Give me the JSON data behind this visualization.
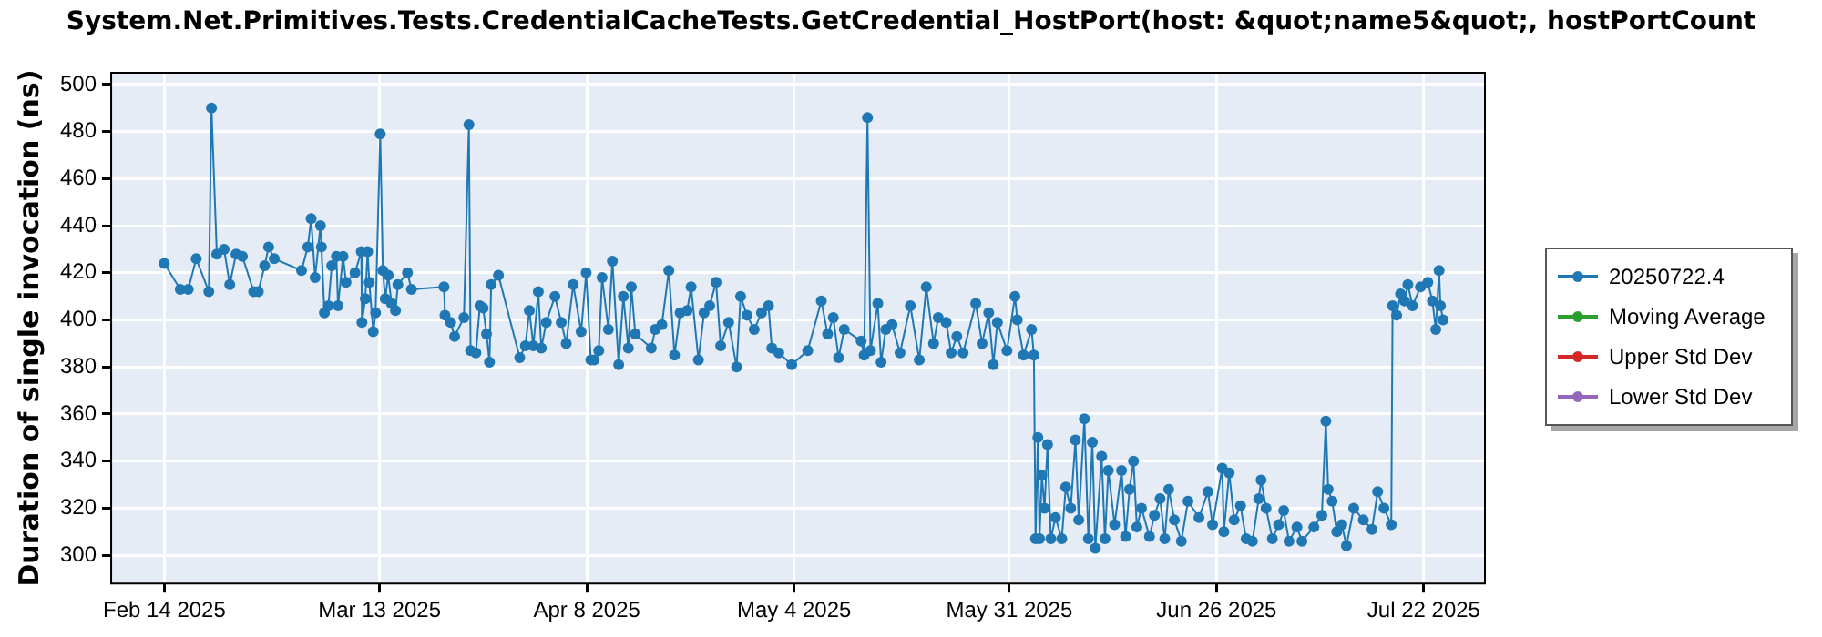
{
  "chart_data": {
    "type": "line",
    "title": "System.Net.Primitives.Tests.CredentialCacheTests.GetCredential_HostPort(host: &quot;name5&quot;, hostPortCount",
    "ylabel": "Duration of single invocation (ns)",
    "xlim": [
      "2025-02-07T08:00",
      "2025-07-29T16:00"
    ],
    "xticks": [
      {
        "value": "2025-02-14",
        "label": "Feb 14 2025"
      },
      {
        "value": "2025-03-13",
        "label": "Mar 13 2025"
      },
      {
        "value": "2025-04-08",
        "label": "Apr 8 2025"
      },
      {
        "value": "2025-05-04",
        "label": "May 4 2025"
      },
      {
        "value": "2025-05-31",
        "label": "May 31 2025"
      },
      {
        "value": "2025-06-26",
        "label": "Jun 26 2025"
      },
      {
        "value": "2025-07-22",
        "label": "Jul 22 2025"
      }
    ],
    "ylim": [
      288,
      505
    ],
    "yticks": [
      300,
      320,
      340,
      360,
      380,
      400,
      420,
      440,
      460,
      480,
      500
    ],
    "grid": true,
    "legend": "right",
    "marker": "circle",
    "line_style": "solid",
    "series": [
      {
        "name": "20250722.4",
        "color": "#1f77b4",
        "x": [
          "2025-02-14T00:00",
          "2025-02-16T00:00",
          "2025-02-17T00:00",
          "2025-02-18T00:00",
          "2025-02-19T14:00",
          "2025-02-19T22:00",
          "2025-02-20T14:00",
          "2025-02-21T12:00",
          "2025-02-22T05:00",
          "2025-02-23T00:00",
          "2025-02-23T19:00",
          "2025-02-25T05:00",
          "2025-02-25T19:00",
          "2025-02-26T14:00",
          "2025-02-27T02:00",
          "2025-02-27T19:00",
          "2025-03-03T05:00",
          "2025-03-04T00:00",
          "2025-03-04T10:00",
          "2025-03-04T22:00",
          "2025-03-05T14:00",
          "2025-03-05T17:00",
          "2025-03-06T02:00",
          "2025-03-06T14:00",
          "2025-03-07T00:00",
          "2025-03-07T14:00",
          "2025-03-07T19:00",
          "2025-03-08T10:00",
          "2025-03-08T19:00",
          "2025-03-09T22:00",
          "2025-03-10T17:00",
          "2025-03-10T19:00",
          "2025-03-11T05:00",
          "2025-03-11T12:00",
          "2025-03-11T17:00",
          "2025-03-12T05:00",
          "2025-03-12T12:00",
          "2025-03-13T02:00",
          "2025-03-13T10:00",
          "2025-03-13T17:00",
          "2025-03-14T02:00",
          "2025-03-14T12:00",
          "2025-03-15T00:00",
          "2025-03-15T07:00",
          "2025-03-16T12:00",
          "2025-03-17T00:00",
          "2025-03-21T02:00",
          "2025-03-21T05:00",
          "2025-03-21T22:00",
          "2025-03-22T10:00",
          "2025-03-23T14:00",
          "2025-03-24T05:00",
          "2025-03-24T10:00",
          "2025-03-25T02:00",
          "2025-03-25T14:00",
          "2025-03-26T00:00",
          "2025-03-26T10:00",
          "2025-03-26T19:00",
          "2025-03-27T00:00",
          "2025-03-27T22:00",
          "2025-03-30T14:00",
          "2025-03-31T07:00",
          "2025-03-31T19:00",
          "2025-04-01T07:00",
          "2025-04-01T22:00",
          "2025-04-02T07:00",
          "2025-04-02T22:00",
          "2025-04-04T00:00",
          "2025-04-04T19:00",
          "2025-04-05T10:00",
          "2025-04-06T07:00",
          "2025-04-07T07:00",
          "2025-04-07T22:00",
          "2025-04-08T12:00",
          "2025-04-08T22:00",
          "2025-04-09T12:00",
          "2025-04-09T22:00",
          "2025-04-10T17:00",
          "2025-04-11T05:00",
          "2025-04-12T00:00",
          "2025-04-12T14:00",
          "2025-04-13T05:00",
          "2025-04-13T14:00",
          "2025-04-14T02:00",
          "2025-04-16T02:00",
          "2025-04-16T14:00",
          "2025-04-17T10:00",
          "2025-04-18T07:00",
          "2025-04-19T00:00",
          "2025-04-19T17:00",
          "2025-04-20T14:00",
          "2025-04-21T02:00",
          "2025-04-22T00:00",
          "2025-04-22T17:00",
          "2025-04-23T10:00",
          "2025-04-24T05:00",
          "2025-04-24T19:00",
          "2025-04-25T19:00",
          "2025-04-26T19:00",
          "2025-04-27T07:00",
          "2025-04-28T02:00",
          "2025-04-29T00:00",
          "2025-04-29T22:00",
          "2025-04-30T19:00",
          "2025-05-01T05:00",
          "2025-05-02T02:00",
          "2025-05-03T17:00",
          "2025-05-05T17:00",
          "2025-05-07T10:00",
          "2025-05-08T05:00",
          "2025-05-08T22:00",
          "2025-05-09T14:00",
          "2025-05-10T07:00",
          "2025-05-12T10:00",
          "2025-05-12T19:00",
          "2025-05-13T05:00",
          "2025-05-13T14:00",
          "2025-05-14T12:00",
          "2025-05-14T22:00",
          "2025-05-15T12:00",
          "2025-05-16T07:00",
          "2025-05-17T07:00",
          "2025-05-18T14:00",
          "2025-05-19T17:00",
          "2025-05-20T14:00",
          "2025-05-21T12:00",
          "2025-05-22T02:00",
          "2025-05-23T02:00",
          "2025-05-23T17:00",
          "2025-05-24T10:00",
          "2025-05-25T05:00",
          "2025-05-26T19:00",
          "2025-05-27T14:00",
          "2025-05-28T10:00",
          "2025-05-29T00:00",
          "2025-05-29T12:00",
          "2025-05-30T17:00",
          "2025-05-31T17:00",
          "2025-06-01T00:00",
          "2025-06-01T19:00",
          "2025-06-02T19:00",
          "2025-06-03T02:00",
          "2025-06-03T07:00",
          "2025-06-03T14:00",
          "2025-06-03T19:00",
          "2025-06-04T02:00",
          "2025-06-04T10:00",
          "2025-06-04T19:00",
          "2025-06-05T05:00",
          "2025-06-05T19:00",
          "2025-06-06T14:00",
          "2025-06-07T02:00",
          "2025-06-07T17:00",
          "2025-06-08T07:00",
          "2025-06-08T17:00",
          "2025-06-09T10:00",
          "2025-06-09T22:00",
          "2025-06-10T10:00",
          "2025-06-10T19:00",
          "2025-06-11T14:00",
          "2025-06-12T00:00",
          "2025-06-12T10:00",
          "2025-06-13T05:00",
          "2025-06-14T02:00",
          "2025-06-14T14:00",
          "2025-06-15T02:00",
          "2025-06-15T14:00",
          "2025-06-16T00:00",
          "2025-06-16T14:00",
          "2025-06-17T14:00",
          "2025-06-18T05:00",
          "2025-06-18T22:00",
          "2025-06-19T12:00",
          "2025-06-20T00:00",
          "2025-06-20T17:00",
          "2025-06-21T14:00",
          "2025-06-22T10:00",
          "2025-06-23T19:00",
          "2025-06-24T22:00",
          "2025-06-25T12:00",
          "2025-06-26T17:00",
          "2025-06-26T22:00",
          "2025-06-27T14:00",
          "2025-06-28T05:00",
          "2025-06-29T00:00",
          "2025-06-29T17:00",
          "2025-06-30T12:00",
          "2025-07-01T07:00",
          "2025-07-01T14:00",
          "2025-07-02T05:00",
          "2025-07-03T00:00",
          "2025-07-03T19:00",
          "2025-07-04T10:00",
          "2025-07-05T02:00",
          "2025-07-06T02:00",
          "2025-07-06T17:00",
          "2025-07-08T05:00",
          "2025-07-09T05:00",
          "2025-07-09T17:00",
          "2025-07-10T00:00",
          "2025-07-10T12:00",
          "2025-07-11T02:00",
          "2025-07-11T17:00",
          "2025-07-12T07:00",
          "2025-07-13T05:00",
          "2025-07-14T10:00",
          "2025-07-15T12:00",
          "2025-07-16T05:00",
          "2025-07-17T00:00",
          "2025-07-17T22:00",
          "2025-07-18T02:00",
          "2025-07-18T14:00",
          "2025-07-19T02:00",
          "2025-07-19T14:00",
          "2025-07-20T00:00",
          "2025-07-20T14:00",
          "2025-07-21T14:00",
          "2025-07-22T12:00",
          "2025-07-23T02:00",
          "2025-07-23T12:00",
          "2025-07-23T22:00",
          "2025-07-24T02:00",
          "2025-07-24T10:00"
        ],
        "values": [
          424,
          413,
          413,
          426,
          412,
          490,
          428,
          430,
          415,
          428,
          427,
          412,
          412,
          423,
          431,
          426,
          421,
          431,
          443,
          418,
          440,
          431,
          403,
          406,
          423,
          427,
          406,
          427,
          416,
          420,
          429,
          399,
          409,
          429,
          416,
          395,
          403,
          479,
          421,
          409,
          419,
          407,
          404,
          415,
          420,
          413,
          414,
          402,
          399,
          393,
          401,
          483,
          387,
          386,
          406,
          405,
          394,
          382,
          415,
          419,
          384,
          389,
          404,
          389,
          412,
          388,
          399,
          410,
          399,
          390,
          415,
          395,
          420,
          383,
          383,
          387,
          418,
          396,
          425,
          381,
          410,
          388,
          414,
          394,
          388,
          396,
          398,
          421,
          385,
          403,
          404,
          414,
          383,
          403,
          406,
          416,
          389,
          399,
          380,
          410,
          402,
          396,
          403,
          406,
          388,
          386,
          381,
          387,
          408,
          394,
          401,
          384,
          396,
          391,
          385,
          486,
          387,
          407,
          382,
          396,
          398,
          386,
          406,
          383,
          414,
          390,
          401,
          399,
          386,
          393,
          386,
          407,
          390,
          403,
          381,
          399,
          387,
          410,
          400,
          385,
          396,
          385,
          307,
          350,
          307,
          334,
          320,
          347,
          307,
          316,
          307,
          329,
          320,
          349,
          315,
          358,
          307,
          348,
          303,
          342,
          307,
          336,
          313,
          336,
          308,
          328,
          340,
          312,
          320,
          308,
          317,
          324,
          307,
          328,
          315,
          306,
          323,
          316,
          327,
          313,
          337,
          310,
          335,
          315,
          321,
          307,
          306,
          324,
          332,
          320,
          307,
          313,
          319,
          306,
          312,
          306,
          312,
          317,
          357,
          328,
          323,
          310,
          313,
          304,
          320,
          315,
          311,
          327,
          320,
          313,
          406,
          402,
          411,
          408,
          415,
          406,
          414,
          416,
          408,
          396,
          421,
          406,
          400
        ]
      },
      {
        "name": "Moving Average",
        "color": "#2ca02c"
      },
      {
        "name": "Upper Std Dev",
        "color": "#d62728"
      },
      {
        "name": "Lower Std Dev",
        "color": "#9467bd"
      }
    ]
  }
}
